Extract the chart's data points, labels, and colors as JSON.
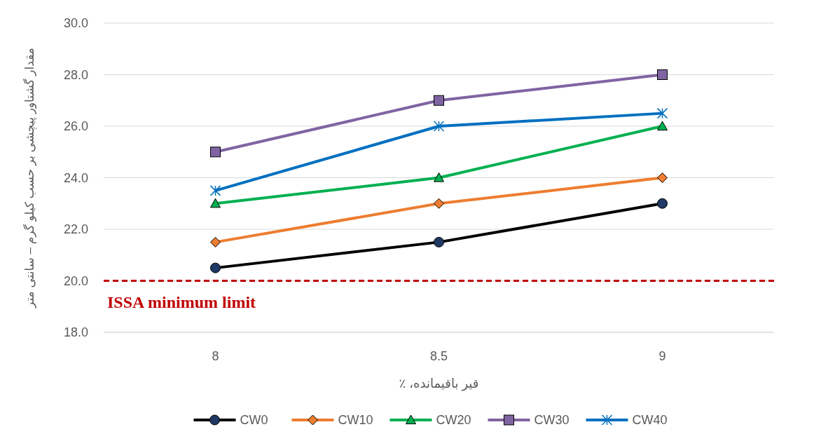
{
  "chart_data": {
    "type": "line",
    "xlabel": "قیر باقیمانده، ٪",
    "ylabel": "مقدار گشتاور پیچشی بر حسب کیلو گرم – سانتی متر",
    "categories": [
      "8",
      "8.5",
      "9"
    ],
    "series": [
      {
        "name": "CW0",
        "color": "#000000",
        "marker": "circle",
        "values": [
          20.5,
          21.5,
          23
        ]
      },
      {
        "name": "CW10",
        "color": "#ed7d31",
        "marker": "diamond",
        "values": [
          21.5,
          23,
          24
        ]
      },
      {
        "name": "CW20",
        "color": "#00b050",
        "marker": "triangle",
        "values": [
          23,
          24,
          26
        ]
      },
      {
        "name": "CW30",
        "color": "#8064a2",
        "marker": "square",
        "values": [
          25,
          27,
          28
        ]
      },
      {
        "name": "CW40",
        "color": "#0070c0",
        "marker": "cross",
        "values": [
          23.5,
          26,
          26.5
        ]
      }
    ],
    "ylim": [
      18,
      30
    ],
    "yticks": [
      {
        "value": 18,
        "label": "18.0"
      },
      {
        "value": 20,
        "label": "20.0"
      },
      {
        "value": 22,
        "label": "22.0"
      },
      {
        "value": 24,
        "label": "24.0"
      },
      {
        "value": 26,
        "label": "26.0"
      },
      {
        "value": 28,
        "label": "28.0"
      },
      {
        "value": 30,
        "label": "30.0"
      }
    ],
    "grid": "y",
    "legend": "bottom",
    "line_style": "solid",
    "ref_lines": [
      {
        "axis": "y",
        "value": 20,
        "label": "ISSA minimum limit",
        "color": "#c00000",
        "line_style": "dashed"
      }
    ]
  }
}
